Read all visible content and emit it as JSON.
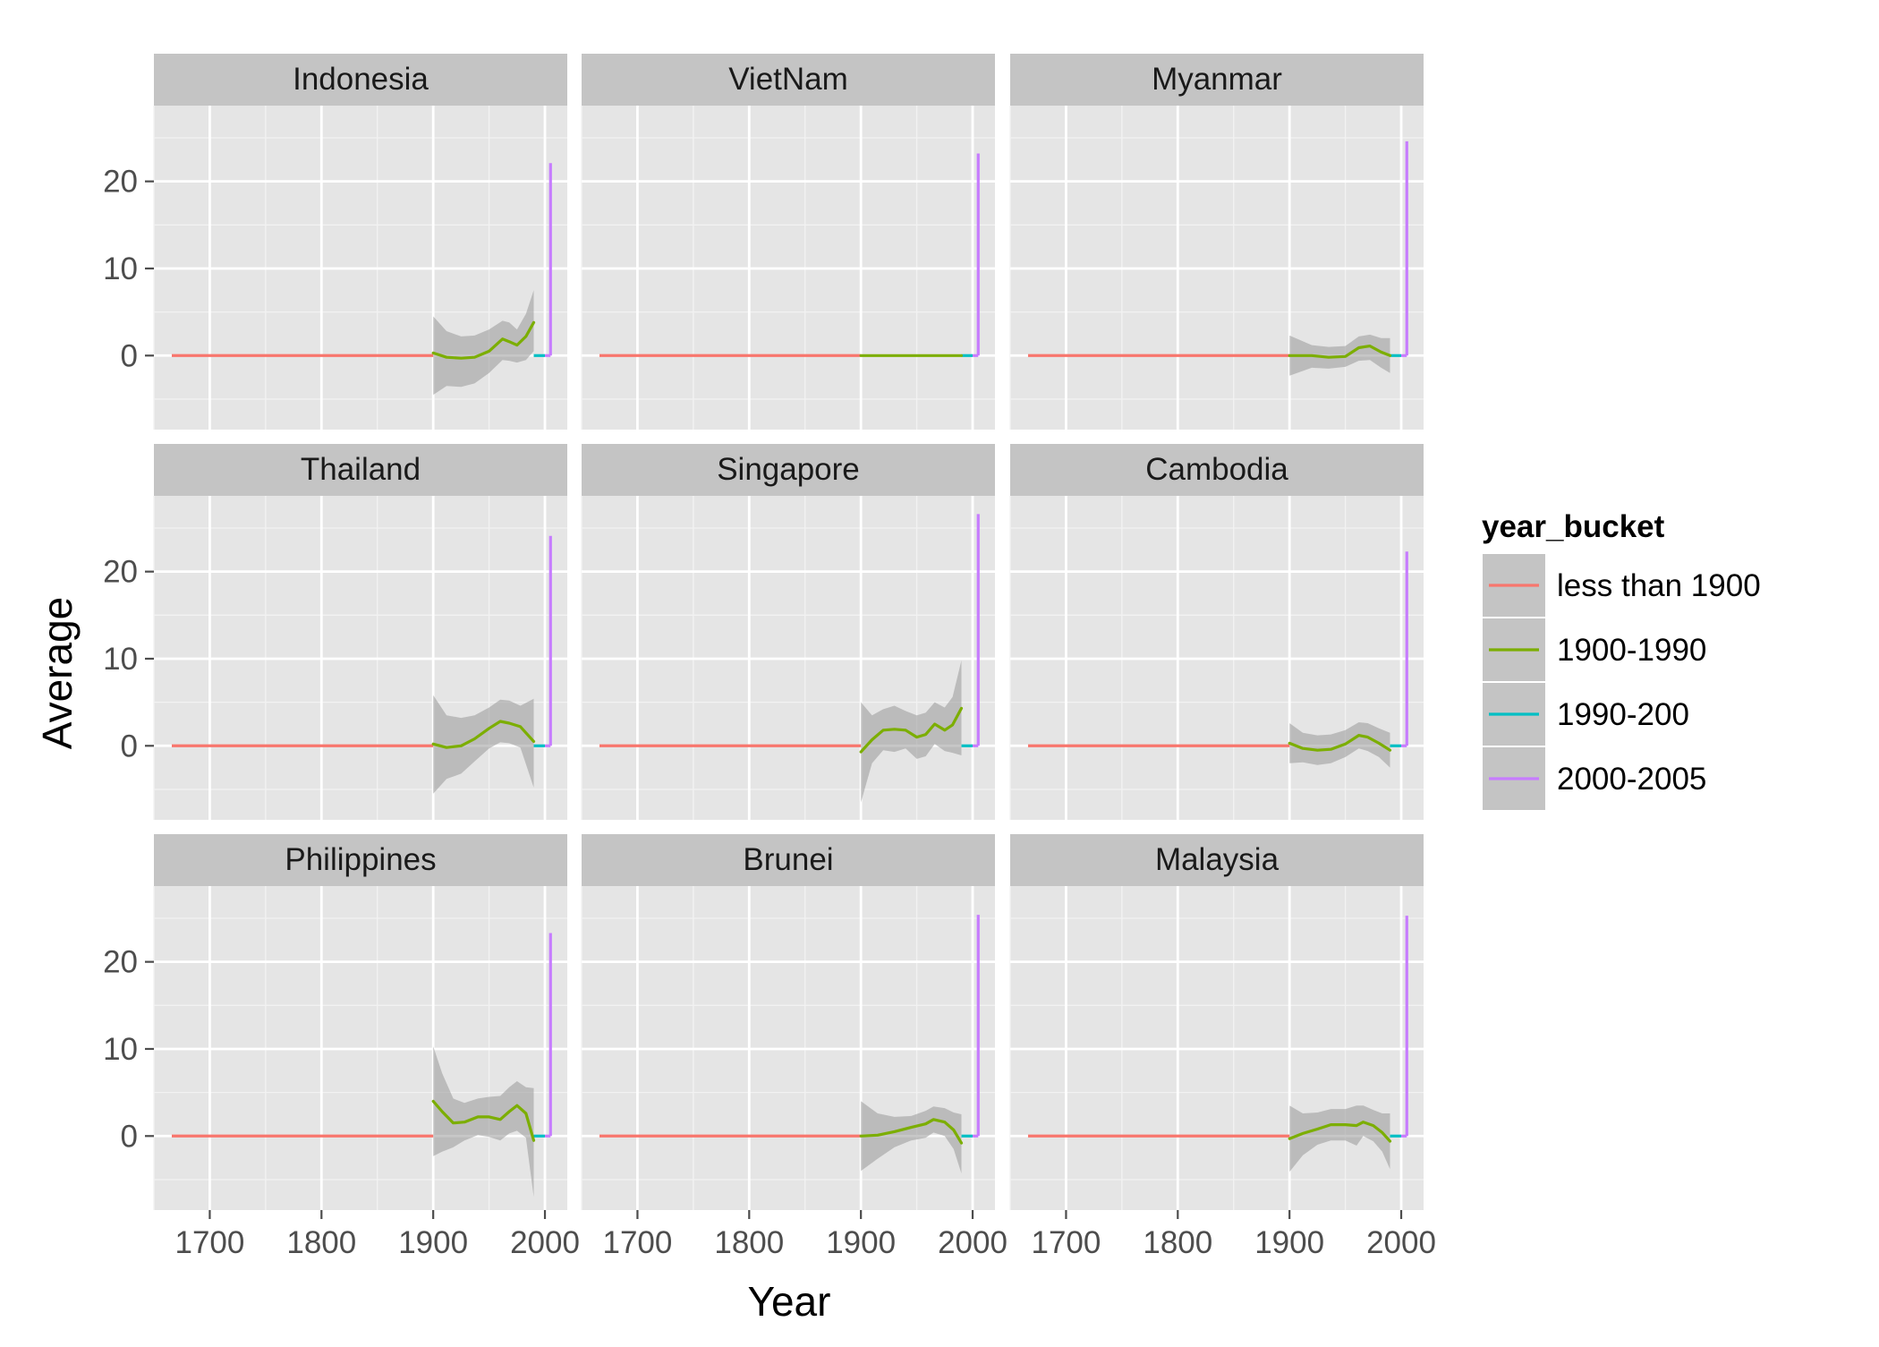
{
  "chart_data": {
    "type": "line",
    "xlabel": "Year",
    "ylabel": "Average",
    "xlim": [
      1650,
      2020
    ],
    "ylim": [
      -8.5,
      28.7
    ],
    "x_ticks": [
      1700,
      1800,
      1900,
      2000
    ],
    "y_ticks": [
      0,
      10,
      20
    ],
    "grid": true,
    "legend": {
      "title": "year_bucket",
      "position": "right",
      "entries": [
        {
          "label": "less than 1900",
          "color": "#F8766D"
        },
        {
          "label": "1900-1990",
          "color": "#7CAE00"
        },
        {
          "label": "1990-200",
          "color": "#00BFC4"
        },
        {
          "label": "2000-2005",
          "color": "#C77CFF"
        }
      ]
    },
    "facets": [
      {
        "name": "Indonesia",
        "smooth": [
          [
            1900,
            0.3
          ],
          [
            1912,
            -0.2
          ],
          [
            1925,
            -0.3
          ],
          [
            1937,
            -0.2
          ],
          [
            1950,
            0.5
          ],
          [
            1962,
            1.9
          ],
          [
            1968,
            1.6
          ],
          [
            1975,
            1.2
          ],
          [
            1983,
            2.2
          ],
          [
            1990,
            3.8
          ]
        ],
        "ci": [
          [
            1900,
            4.5,
            -4.5
          ],
          [
            1912,
            2.8,
            -3.5
          ],
          [
            1925,
            2.2,
            -3.6
          ],
          [
            1937,
            2.3,
            -3.2
          ],
          [
            1950,
            3.0,
            -2.0
          ],
          [
            1962,
            4.0,
            -0.5
          ],
          [
            1968,
            3.8,
            -0.6
          ],
          [
            1975,
            3.0,
            -0.8
          ],
          [
            1983,
            4.8,
            -0.5
          ],
          [
            1990,
            7.5,
            0.5
          ]
        ],
        "peak": 22.1
      },
      {
        "name": "VietNam",
        "smooth": [
          [
            1900,
            0.0
          ],
          [
            1925,
            0.0
          ],
          [
            1950,
            0.0
          ],
          [
            1975,
            0.0
          ],
          [
            1990,
            0.0
          ]
        ],
        "ci": [],
        "peak": 23.2
      },
      {
        "name": "Myanmar",
        "smooth": [
          [
            1900,
            0.0
          ],
          [
            1920,
            0.0
          ],
          [
            1935,
            -0.2
          ],
          [
            1950,
            -0.1
          ],
          [
            1962,
            0.9
          ],
          [
            1972,
            1.1
          ],
          [
            1982,
            0.4
          ],
          [
            1990,
            0.0
          ]
        ],
        "ci": [
          [
            1900,
            2.3,
            -2.3
          ],
          [
            1920,
            1.2,
            -1.4
          ],
          [
            1935,
            1.0,
            -1.5
          ],
          [
            1950,
            1.1,
            -1.3
          ],
          [
            1962,
            2.2,
            -0.6
          ],
          [
            1972,
            2.4,
            -0.5
          ],
          [
            1982,
            2.0,
            -1.4
          ],
          [
            1990,
            2.0,
            -2.0
          ]
        ],
        "peak": 24.6
      },
      {
        "name": "Thailand",
        "smooth": [
          [
            1900,
            0.2
          ],
          [
            1912,
            -0.2
          ],
          [
            1925,
            0.0
          ],
          [
            1937,
            0.8
          ],
          [
            1950,
            2.0
          ],
          [
            1960,
            2.8
          ],
          [
            1968,
            2.6
          ],
          [
            1978,
            2.2
          ],
          [
            1990,
            0.5
          ]
        ],
        "ci": [
          [
            1900,
            5.8,
            -5.5
          ],
          [
            1912,
            3.5,
            -3.8
          ],
          [
            1925,
            3.2,
            -3.2
          ],
          [
            1937,
            3.5,
            -1.8
          ],
          [
            1950,
            4.4,
            -0.3
          ],
          [
            1960,
            5.3,
            0.4
          ],
          [
            1968,
            5.2,
            0.3
          ],
          [
            1978,
            4.6,
            -0.2
          ],
          [
            1990,
            5.4,
            -4.8
          ]
        ],
        "peak": 24.1
      },
      {
        "name": "Singapore",
        "smooth": [
          [
            1900,
            -0.7
          ],
          [
            1910,
            0.7
          ],
          [
            1920,
            1.8
          ],
          [
            1930,
            1.9
          ],
          [
            1940,
            1.8
          ],
          [
            1950,
            1.0
          ],
          [
            1958,
            1.3
          ],
          [
            1966,
            2.5
          ],
          [
            1975,
            1.8
          ],
          [
            1982,
            2.4
          ],
          [
            1990,
            4.3
          ]
        ],
        "ci": [
          [
            1900,
            5.0,
            -6.5
          ],
          [
            1910,
            3.5,
            -2.0
          ],
          [
            1920,
            4.2,
            -0.5
          ],
          [
            1930,
            4.6,
            -0.7
          ],
          [
            1940,
            4.0,
            -0.3
          ],
          [
            1950,
            3.5,
            -1.5
          ],
          [
            1958,
            3.8,
            -1.2
          ],
          [
            1966,
            5.0,
            0.2
          ],
          [
            1975,
            4.4,
            -0.6
          ],
          [
            1982,
            5.6,
            -0.8
          ],
          [
            1990,
            9.8,
            -1.1
          ]
        ],
        "peak": 26.6
      },
      {
        "name": "Cambodia",
        "smooth": [
          [
            1900,
            0.3
          ],
          [
            1912,
            -0.3
          ],
          [
            1925,
            -0.5
          ],
          [
            1937,
            -0.4
          ],
          [
            1950,
            0.2
          ],
          [
            1962,
            1.2
          ],
          [
            1970,
            1.0
          ],
          [
            1980,
            0.3
          ],
          [
            1990,
            -0.5
          ]
        ],
        "ci": [
          [
            1900,
            2.6,
            -2.0
          ],
          [
            1912,
            1.5,
            -1.9
          ],
          [
            1925,
            1.2,
            -2.2
          ],
          [
            1937,
            1.3,
            -2.0
          ],
          [
            1950,
            1.8,
            -1.3
          ],
          [
            1962,
            2.7,
            -0.3
          ],
          [
            1970,
            2.6,
            -0.6
          ],
          [
            1980,
            2.0,
            -1.3
          ],
          [
            1990,
            1.5,
            -2.5
          ]
        ],
        "peak": 22.3
      },
      {
        "name": "Philippines",
        "smooth": [
          [
            1900,
            4.0
          ],
          [
            1908,
            2.8
          ],
          [
            1918,
            1.5
          ],
          [
            1928,
            1.6
          ],
          [
            1940,
            2.2
          ],
          [
            1950,
            2.2
          ],
          [
            1960,
            1.9
          ],
          [
            1968,
            2.8
          ],
          [
            1975,
            3.5
          ],
          [
            1983,
            2.6
          ],
          [
            1990,
            -0.5
          ]
        ],
        "ci": [
          [
            1900,
            10.3,
            -2.3
          ],
          [
            1908,
            7.2,
            -1.8
          ],
          [
            1918,
            4.3,
            -1.3
          ],
          [
            1928,
            3.8,
            -0.5
          ],
          [
            1940,
            4.3,
            0.1
          ],
          [
            1950,
            4.5,
            -0.1
          ],
          [
            1960,
            4.6,
            -0.5
          ],
          [
            1968,
            5.6,
            0.3
          ],
          [
            1975,
            6.3,
            0.6
          ],
          [
            1983,
            5.6,
            -0.2
          ],
          [
            1990,
            5.5,
            -7.0
          ]
        ],
        "peak": 23.3
      },
      {
        "name": "Brunei",
        "smooth": [
          [
            1900,
            0.0
          ],
          [
            1915,
            0.1
          ],
          [
            1930,
            0.5
          ],
          [
            1945,
            1.0
          ],
          [
            1958,
            1.4
          ],
          [
            1965,
            1.9
          ],
          [
            1975,
            1.6
          ],
          [
            1983,
            0.7
          ],
          [
            1990,
            -0.8
          ]
        ],
        "ci": [
          [
            1900,
            4.0,
            -4.0
          ],
          [
            1915,
            2.6,
            -2.6
          ],
          [
            1930,
            2.2,
            -1.3
          ],
          [
            1945,
            2.3,
            -0.5
          ],
          [
            1958,
            2.9,
            -0.2
          ],
          [
            1965,
            3.4,
            0.4
          ],
          [
            1975,
            3.2,
            0.0
          ],
          [
            1983,
            2.7,
            -1.5
          ],
          [
            1990,
            2.5,
            -4.3
          ]
        ],
        "peak": 25.4
      },
      {
        "name": "Malaysia",
        "smooth": [
          [
            1900,
            -0.3
          ],
          [
            1912,
            0.3
          ],
          [
            1925,
            0.8
          ],
          [
            1937,
            1.3
          ],
          [
            1950,
            1.3
          ],
          [
            1960,
            1.2
          ],
          [
            1966,
            1.6
          ],
          [
            1975,
            1.2
          ],
          [
            1983,
            0.4
          ],
          [
            1990,
            -0.6
          ]
        ],
        "ci": [
          [
            1900,
            3.5,
            -4.1
          ],
          [
            1912,
            2.6,
            -2.2
          ],
          [
            1925,
            2.7,
            -1.0
          ],
          [
            1937,
            3.1,
            -0.5
          ],
          [
            1950,
            3.1,
            -0.5
          ],
          [
            1960,
            3.5,
            -1.1
          ],
          [
            1966,
            3.5,
            0.0
          ],
          [
            1975,
            3.0,
            -0.6
          ],
          [
            1983,
            2.6,
            -1.8
          ],
          [
            1990,
            2.6,
            -3.8
          ]
        ],
        "peak": 25.3
      }
    ],
    "segments": [
      {
        "bucket": "less than 1900",
        "x": [
          1666,
          1900
        ],
        "y": 0
      },
      {
        "bucket": "1990-200",
        "x": [
          1990,
          2000
        ],
        "y": 0
      },
      {
        "bucket": "2000-2005",
        "x": [
          2000,
          2005
        ],
        "y": 0
      }
    ]
  }
}
